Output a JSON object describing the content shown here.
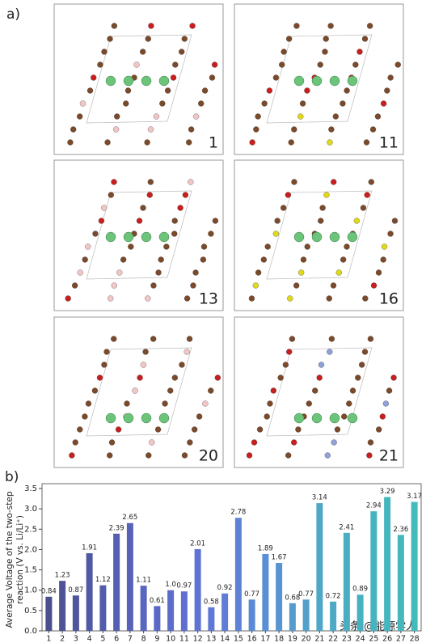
{
  "panels": {
    "a_label": "a)",
    "b_label": "b)",
    "structures": [
      "1",
      "11",
      "13",
      "16",
      "20",
      "21"
    ]
  },
  "watermark": "头条 @能源学人",
  "chart_data": {
    "type": "bar",
    "ylabel": [
      "Average Voltage of the two-step",
      "reaction (V vs. Li/Li⁺)"
    ],
    "categories": [
      "1",
      "2",
      "3",
      "4",
      "5",
      "6",
      "7",
      "8",
      "9",
      "10",
      "11",
      "12",
      "13",
      "14",
      "15",
      "16",
      "17",
      "18",
      "19",
      "20",
      "21",
      "22",
      "23",
      "24",
      "25",
      "26",
      "27",
      "28"
    ],
    "values": [
      0.84,
      1.23,
      0.87,
      1.91,
      1.12,
      2.39,
      2.65,
      1.11,
      0.61,
      1.0,
      0.97,
      2.01,
      0.58,
      0.92,
      2.78,
      0.77,
      1.89,
      1.67,
      0.68,
      0.77,
      3.14,
      0.72,
      2.41,
      0.89,
      2.94,
      3.29,
      2.36,
      3.17
    ],
    "value_labels": [
      "0.84",
      "1.23",
      "0.87",
      "1.91",
      "1.12",
      "2.39",
      "2.65",
      "1.11",
      "0.61",
      "1.0",
      "0.97",
      "2.01",
      "0.58",
      "0.92",
      "2.78",
      "0.77",
      "1.89",
      "1.67",
      "0.68",
      "0.77",
      "3.14",
      "0.72",
      "2.41",
      "0.89",
      "2.94",
      "3.29",
      "2.36",
      "3.17"
    ],
    "colors": [
      "#4a4f8e",
      "#4d5395",
      "#4f569c",
      "#5159a3",
      "#535caa",
      "#555fb1",
      "#5762b8",
      "#5965bf",
      "#5b68c5",
      "#5d6bcb",
      "#5e6fd0",
      "#5f73d3",
      "#5f78d5",
      "#5f7dd6",
      "#5e83d6",
      "#5c89d5",
      "#5a8fd3",
      "#5895d0",
      "#569bcd",
      "#53a0ca",
      "#50a6c7",
      "#4daac4",
      "#4aaec2",
      "#48b1c0",
      "#46b4bf",
      "#45b6be",
      "#44b8bd",
      "#43babc"
    ],
    "ylim": [
      0,
      3.5
    ],
    "yticks": [
      {
        "value": 0,
        "label": "0.0"
      },
      0.5,
      {
        "value": 1,
        "label": "1.0"
      },
      1.5,
      {
        "value": 2,
        "label": "2.0"
      },
      2.5,
      {
        "value": 3,
        "label": "3.0"
      },
      3.5
    ]
  }
}
